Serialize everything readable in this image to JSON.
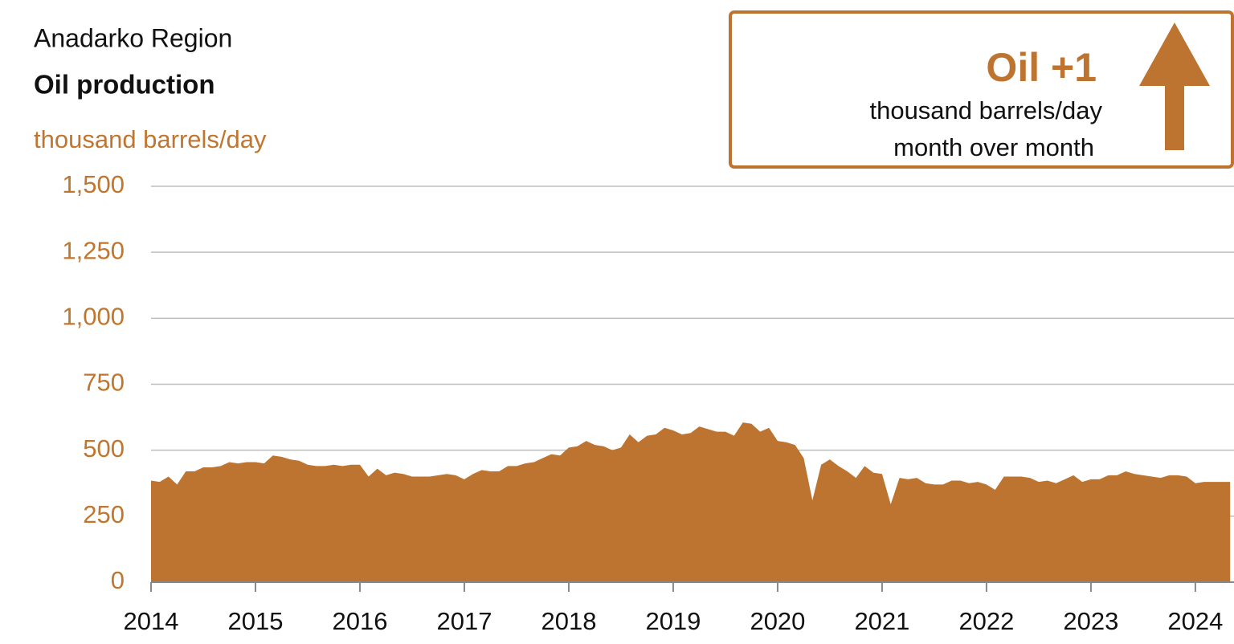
{
  "chart_data": {
    "type": "area",
    "title": "Anadarko Region",
    "subtitle": "Oil production",
    "y_label": "thousand barrels/day",
    "annotation": {
      "headline": "Oil +1",
      "unit": "thousand barrels/day",
      "period": "month over month"
    },
    "color": "#bd7430",
    "grid": true,
    "xlim": [
      2014,
      2024.37
    ],
    "xticks": [
      2014,
      2015,
      2016,
      2017,
      2018,
      2019,
      2020,
      2021,
      2022,
      2023,
      2024
    ],
    "ylim": [
      0,
      1500
    ],
    "yticks": [
      0,
      250,
      500,
      750,
      {
        "value": 1000,
        "label": "1,000"
      },
      {
        "value": 1250,
        "label": "1,250"
      },
      {
        "value": 1500,
        "label": "1,500"
      }
    ],
    "x": [
      2014,
      2014.083,
      2014.167,
      2014.25,
      2014.333,
      2014.417,
      2014.5,
      2014.583,
      2014.667,
      2014.75,
      2014.833,
      2014.917,
      2015,
      2015.083,
      2015.167,
      2015.25,
      2015.333,
      2015.417,
      2015.5,
      2015.583,
      2015.667,
      2015.75,
      2015.833,
      2015.917,
      2016,
      2016.083,
      2016.167,
      2016.25,
      2016.333,
      2016.417,
      2016.5,
      2016.583,
      2016.667,
      2016.75,
      2016.833,
      2016.917,
      2017,
      2017.083,
      2017.167,
      2017.25,
      2017.333,
      2017.417,
      2017.5,
      2017.583,
      2017.667,
      2017.75,
      2017.833,
      2017.917,
      2018,
      2018.083,
      2018.167,
      2018.25,
      2018.333,
      2018.417,
      2018.5,
      2018.583,
      2018.667,
      2018.75,
      2018.833,
      2018.917,
      2019,
      2019.083,
      2019.167,
      2019.25,
      2019.333,
      2019.417,
      2019.5,
      2019.583,
      2019.667,
      2019.75,
      2019.833,
      2019.917,
      2020,
      2020.083,
      2020.167,
      2020.25,
      2020.333,
      2020.417,
      2020.5,
      2020.583,
      2020.667,
      2020.75,
      2020.833,
      2020.917,
      2021,
      2021.083,
      2021.167,
      2021.25,
      2021.333,
      2021.417,
      2021.5,
      2021.583,
      2021.667,
      2021.75,
      2021.833,
      2021.917,
      2022,
      2022.083,
      2022.167,
      2022.25,
      2022.333,
      2022.417,
      2022.5,
      2022.583,
      2022.667,
      2022.75,
      2022.833,
      2022.917,
      2023,
      2023.083,
      2023.167,
      2023.25,
      2023.333,
      2023.417,
      2023.5,
      2023.583,
      2023.667,
      2023.75,
      2023.833,
      2023.917,
      2024,
      2024.083,
      2024.167,
      2024.25,
      2024.333
    ],
    "values": [
      385,
      380,
      400,
      370,
      420,
      420,
      435,
      435,
      440,
      455,
      450,
      455,
      455,
      450,
      480,
      475,
      465,
      460,
      445,
      440,
      440,
      445,
      440,
      445,
      445,
      400,
      430,
      405,
      415,
      410,
      400,
      400,
      400,
      405,
      410,
      405,
      390,
      410,
      425,
      420,
      420,
      440,
      440,
      450,
      455,
      470,
      485,
      480,
      510,
      515,
      535,
      520,
      515,
      500,
      510,
      560,
      530,
      555,
      560,
      585,
      575,
      560,
      565,
      590,
      580,
      570,
      570,
      555,
      605,
      600,
      570,
      585,
      535,
      530,
      520,
      470,
      310,
      445,
      465,
      440,
      420,
      395,
      440,
      415,
      410,
      295,
      395,
      390,
      395,
      375,
      370,
      370,
      385,
      385,
      375,
      380,
      370,
      350,
      400,
      400,
      400,
      395,
      380,
      385,
      375,
      390,
      405,
      380,
      390,
      390,
      405,
      405,
      420,
      410,
      405,
      400,
      395,
      405,
      405,
      400,
      375,
      380,
      380,
      380,
      380
    ]
  }
}
